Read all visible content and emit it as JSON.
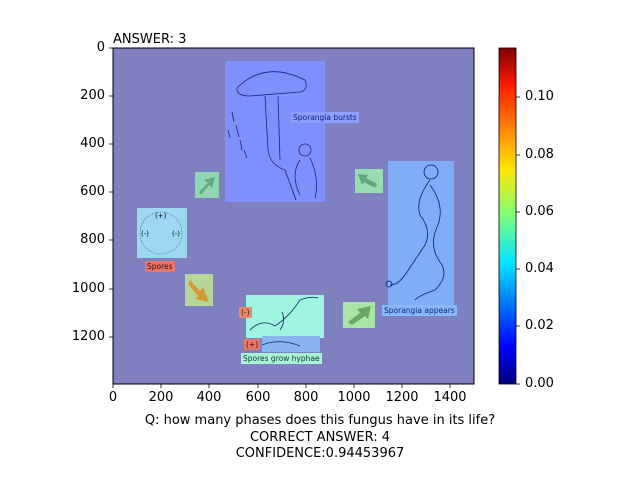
{
  "header": {
    "answer_text": "ANSWER: 3"
  },
  "axes": {
    "x_ticks": [
      "0",
      "200",
      "400",
      "600",
      "800",
      "1000",
      "1200",
      "1400"
    ],
    "y_ticks": [
      "0",
      "200",
      "400",
      "600",
      "800",
      "1000",
      "1200"
    ]
  },
  "colorbar": {
    "ticks": [
      "0.00",
      "0.02",
      "0.04",
      "0.06",
      "0.08",
      "0.10"
    ]
  },
  "diagram": {
    "labels": {
      "sporangia_bursts": "Sporangia bursts",
      "sporangia_appears": "Sporangia appears",
      "spores": "Spores",
      "spores_grow_hyphae": "Spores grow hyphae",
      "minus": "(-)",
      "plus": "(+)",
      "spore_plus": "(+)",
      "spore_minus_left": "(-)",
      "spore_minus_right": "(-)"
    }
  },
  "footer": {
    "question": "Q:  how many phases does this fungus have in its life?",
    "correct_answer": "CORRECT ANSWER: 4",
    "confidence": "CONFIDENCE:0.94453967"
  },
  "colors": {
    "background_overlay": "#7f80c0",
    "region_top": "#7f8fff",
    "region_right": "#80aef6",
    "region_bottom": "#9ff5e0",
    "region_spores": "#9cd9f0"
  }
}
